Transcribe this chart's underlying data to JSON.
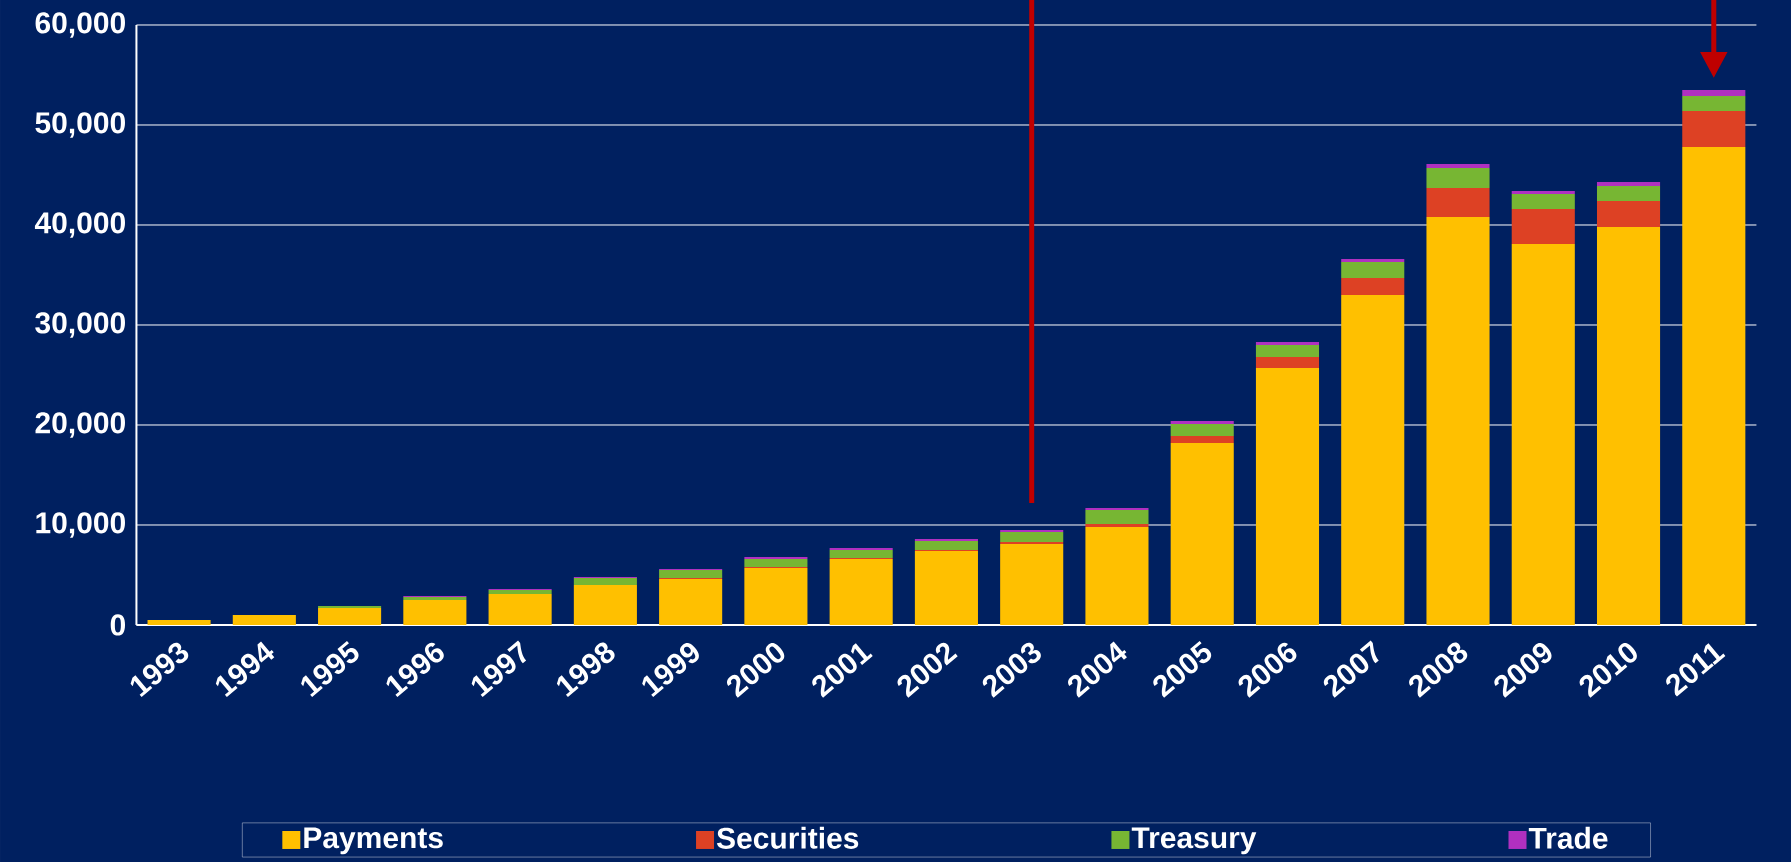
{
  "chart_data": {
    "type": "bar",
    "stacked": true,
    "categories": [
      "1993",
      "1994",
      "1995",
      "1996",
      "1997",
      "1998",
      "1999",
      "2000",
      "2001",
      "2002",
      "2003",
      "2004",
      "2005",
      "2006",
      "2007",
      "2008",
      "2009",
      "2010",
      "2011"
    ],
    "series": [
      {
        "name": "Payments",
        "color": "#ffc000",
        "values": [
          500,
          1000,
          1700,
          2500,
          3100,
          4000,
          4600,
          5700,
          6600,
          7400,
          8100,
          9800,
          18200,
          25700,
          33000,
          40800,
          38100,
          39800,
          47800
        ]
      },
      {
        "name": "Securities",
        "color": "#dd4124",
        "values": [
          0,
          0,
          0,
          0,
          0,
          0,
          100,
          100,
          100,
          100,
          200,
          300,
          700,
          1100,
          1700,
          2900,
          3500,
          2600,
          3600
        ]
      },
      {
        "name": "Treasury",
        "color": "#77b633",
        "values": [
          0,
          0,
          200,
          300,
          400,
          700,
          800,
          800,
          800,
          900,
          1000,
          1400,
          1200,
          1200,
          1600,
          2000,
          1500,
          1500,
          1500
        ]
      },
      {
        "name": "Trade",
        "color": "#b030c0",
        "values": [
          0,
          0,
          0,
          100,
          100,
          100,
          100,
          200,
          200,
          200,
          200,
          200,
          300,
          300,
          300,
          400,
          300,
          400,
          600
        ]
      }
    ],
    "ylim": [
      0,
      60000
    ],
    "yticks": [
      {
        "value": 0,
        "label": "0"
      },
      {
        "value": 10000,
        "label": "10,000"
      },
      {
        "value": 20000,
        "label": "20,000"
      },
      {
        "value": 30000,
        "label": "30,000"
      },
      {
        "value": 40000,
        "label": "40,000"
      },
      {
        "value": 50000,
        "label": "50,000"
      },
      {
        "value": 60000,
        "label": "60,000"
      }
    ],
    "grid": "y",
    "legend": "bottom",
    "ref_lines": [
      {
        "axis": "x",
        "value": "2003",
        "color": "#c00000"
      }
    ]
  }
}
